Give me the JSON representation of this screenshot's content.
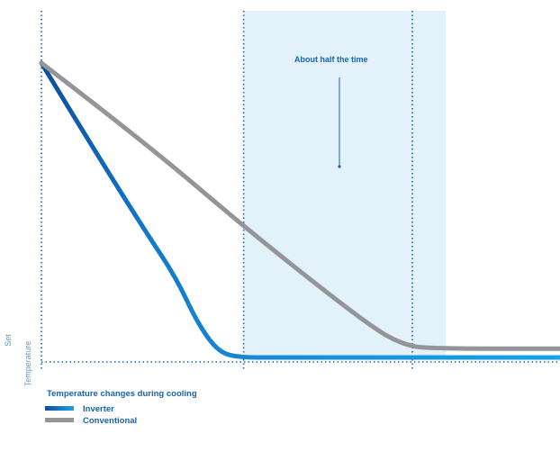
{
  "chart_data": {
    "type": "line",
    "title": "",
    "xlabel": "Temperature changes during cooling",
    "ylabel": [
      "Set",
      "Temperature"
    ],
    "annotation": "About half the time",
    "series": [
      {
        "name": "Inverter",
        "color": "#1479c9",
        "points": [
          [
            0,
            100
          ],
          [
            10,
            71
          ],
          [
            20,
            43
          ],
          [
            26,
            27
          ],
          [
            30,
            12
          ],
          [
            34,
            2
          ],
          [
            38,
            0
          ],
          [
            46,
            0
          ],
          [
            70,
            0
          ],
          [
            100,
            0
          ]
        ]
      },
      {
        "name": "Conventional",
        "color": "#939598",
        "points": [
          [
            0,
            100
          ],
          [
            20,
            73
          ],
          [
            40,
            43
          ],
          [
            63,
            11
          ],
          [
            70,
            4
          ],
          [
            76,
            3
          ],
          [
            100,
            3
          ]
        ]
      }
    ],
    "legend": [
      {
        "label": "Inverter",
        "color": "#1479c9"
      },
      {
        "label": "Conventional",
        "color": "#939598"
      }
    ],
    "legend_position": "bottom-left",
    "highlight_band": {
      "from": 39,
      "to": 78,
      "color": "#e3f1fb"
    },
    "guides": [
      0,
      39,
      100
    ],
    "baseline_guide": 0
  }
}
